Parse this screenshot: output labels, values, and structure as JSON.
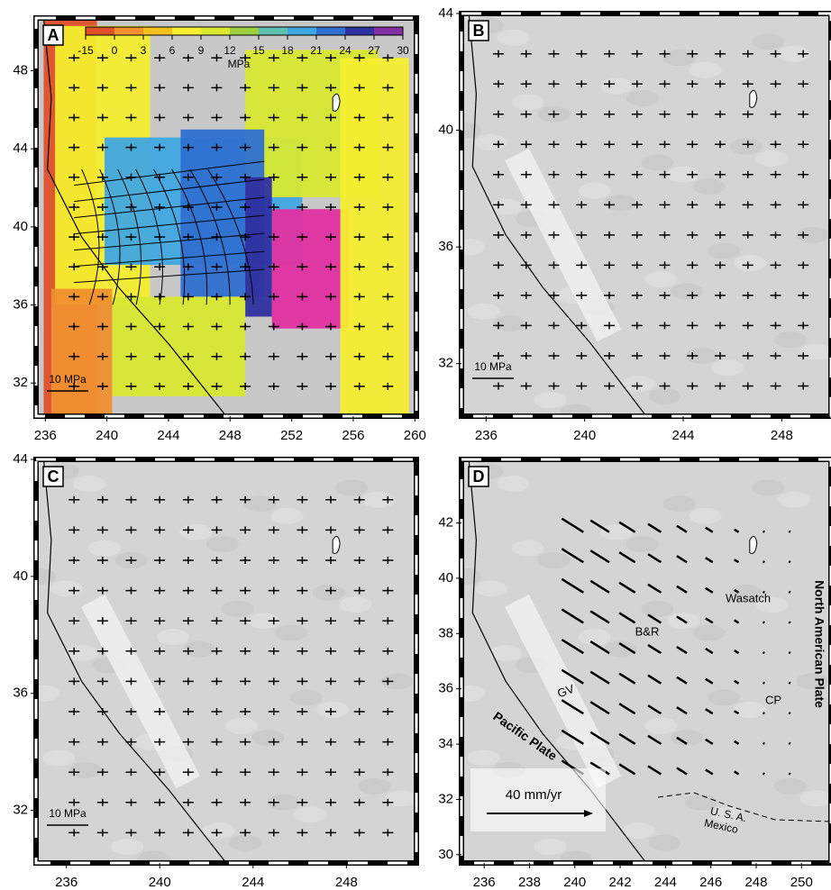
{
  "panels": [
    {
      "label": "A",
      "xlim": [
        235.4,
        260.1
      ],
      "ylim": [
        30.3,
        50.7
      ],
      "xticks": [
        236,
        240,
        244,
        248,
        252,
        256,
        260
      ],
      "yticks": [
        32,
        36,
        40,
        44,
        48
      ],
      "scale_label": "10 MPa",
      "colorbar": {
        "ticks": [
          -15,
          0,
          3,
          6,
          9,
          12,
          15,
          18,
          21,
          24,
          27,
          30
        ],
        "unit": "MPa"
      }
    },
    {
      "label": "B",
      "xlim": [
        235,
        250
      ],
      "ylim": [
        30.2,
        44
      ],
      "xticks": [
        236,
        240,
        244,
        248
      ],
      "yticks": [
        32,
        36,
        40,
        44
      ],
      "scale_label": "10 MPa"
    },
    {
      "label": "C",
      "xlim": [
        234.7,
        251
      ],
      "ylim": [
        30.2,
        44
      ],
      "xticks": [
        236,
        240,
        244,
        248
      ],
      "yticks": [
        32,
        36,
        40,
        44
      ],
      "scale_label": "10 MPa"
    },
    {
      "label": "D",
      "xlim": [
        235,
        251.3
      ],
      "ylim": [
        29.7,
        44.3
      ],
      "xticks": [
        236,
        238,
        240,
        242,
        244,
        246,
        248,
        250
      ],
      "yticks": [
        30,
        32,
        34,
        36,
        38,
        40,
        42
      ],
      "scale_label": "40 mm/yr",
      "annotations": [
        "Wasatch",
        "B&R",
        "GV",
        "CP",
        "North American Plate",
        "Pacific Plate",
        "U. S. A.",
        "Mexico"
      ]
    }
  ]
}
